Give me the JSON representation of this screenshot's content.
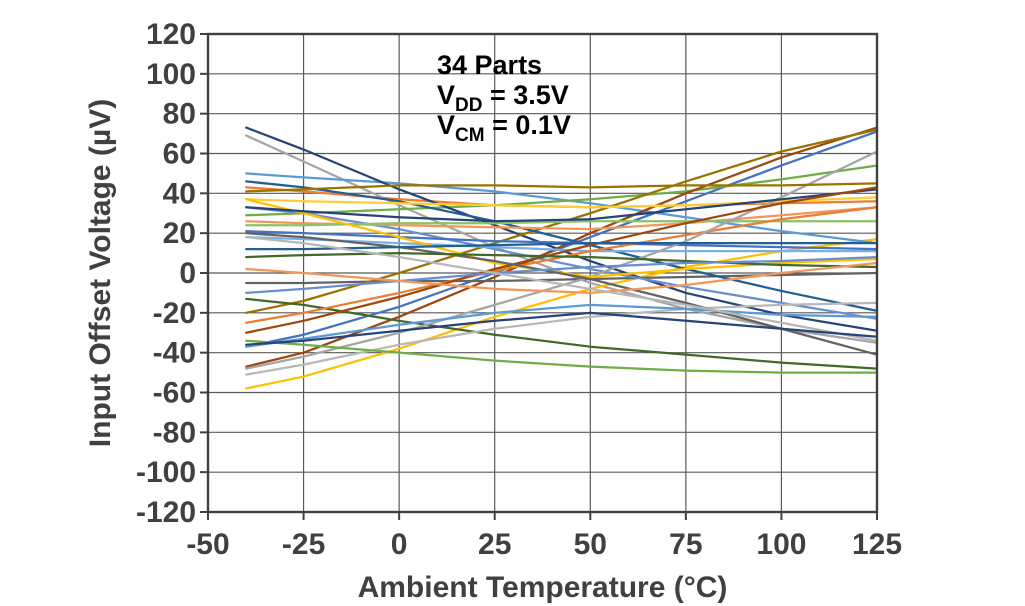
{
  "colors": {
    "background": "#ffffff",
    "grid": "#595959",
    "axis": "#404040",
    "tick_text": "#404040",
    "title_text": "#404040",
    "annotation_text": "#000000"
  },
  "chart_data": {
    "type": "line",
    "title": "",
    "xlabel": "Ambient Temperature (°C)",
    "ylabel": "Input Offset Voltage (µV)",
    "xlim": [
      -50,
      125
    ],
    "ylim": [
      -120,
      120
    ],
    "xticks": [
      -50,
      -25,
      0,
      25,
      50,
      75,
      100,
      125
    ],
    "yticks": [
      120,
      100,
      80,
      60,
      40,
      20,
      0,
      -20,
      -40,
      -60,
      -80,
      -100,
      -120
    ],
    "grid": "on",
    "legend": "none",
    "annotation": {
      "line1": "34 Parts",
      "line2": {
        "base": "V",
        "sub": "DD",
        "rest": " = 3.5V"
      },
      "line3": {
        "base": "V",
        "sub": "CM",
        "rest": " = 0.1V"
      }
    },
    "x": [
      -40,
      -25,
      0,
      25,
      50,
      75,
      100,
      125
    ],
    "series": [
      {
        "color": "#4472C4",
        "values": [
          -37,
          -31,
          -17,
          0,
          18,
          36,
          54,
          71
        ]
      },
      {
        "color": "#ED7D31",
        "values": [
          43,
          41,
          37,
          34,
          33,
          34,
          35,
          36
        ]
      },
      {
        "color": "#A5A5A5",
        "values": [
          69,
          56,
          34,
          13,
          -5,
          -18,
          -28,
          -35
        ]
      },
      {
        "color": "#FFC000",
        "values": [
          -58,
          -52,
          -38,
          -22,
          -8,
          3,
          11,
          17
        ]
      },
      {
        "color": "#5B9BD5",
        "values": [
          50,
          48,
          45,
          41,
          35,
          28,
          21,
          15
        ]
      },
      {
        "color": "#70AD47",
        "values": [
          29,
          30,
          32,
          34,
          37,
          41,
          47,
          54
        ]
      },
      {
        "color": "#264478",
        "values": [
          73,
          62,
          42,
          24,
          6,
          -10,
          -21,
          -29
        ]
      },
      {
        "color": "#9E480E",
        "values": [
          -47,
          -40,
          -22,
          -2,
          20,
          40,
          58,
          73
        ]
      },
      {
        "color": "#636363",
        "values": [
          -5,
          -5,
          -4,
          -4,
          -3,
          -2,
          -1,
          0
        ]
      },
      {
        "color": "#997300",
        "values": [
          -20,
          -14,
          0,
          15,
          30,
          46,
          61,
          72
        ]
      },
      {
        "color": "#255E91",
        "values": [
          46,
          43,
          36,
          26,
          14,
          2,
          -9,
          -19
        ]
      },
      {
        "color": "#43682B",
        "values": [
          -13,
          -16,
          -24,
          -31,
          -37,
          -41,
          -45,
          -48
        ]
      },
      {
        "color": "#698ED0",
        "values": [
          33,
          30,
          22,
          12,
          2,
          -7,
          -15,
          -23
        ]
      },
      {
        "color": "#F1975A",
        "values": [
          26,
          25,
          24,
          23,
          22,
          25,
          29,
          33
        ]
      },
      {
        "color": "#B7B7B7",
        "values": [
          -51,
          -46,
          -36,
          -28,
          -22,
          -18,
          -16,
          -15
        ]
      },
      {
        "color": "#FFCD33",
        "values": [
          37,
          36,
          35,
          34,
          33,
          34,
          36,
          38
        ]
      },
      {
        "color": "#7CAFDD",
        "values": [
          18,
          17,
          15,
          13,
          11,
          11,
          11,
          11
        ]
      },
      {
        "color": "#8CC168",
        "values": [
          24,
          24,
          25,
          25,
          26,
          26,
          26,
          26
        ]
      },
      {
        "color": "#4472C4",
        "values": [
          21,
          20,
          18,
          16,
          15,
          14,
          13,
          12
        ]
      },
      {
        "color": "#ED7D31",
        "values": [
          -25,
          -20,
          -10,
          1,
          11,
          19,
          27,
          33
        ]
      },
      {
        "color": "#A5A5A5",
        "values": [
          -48,
          -42,
          -30,
          -16,
          -2,
          16,
          38,
          61
        ]
      },
      {
        "color": "#FFC000",
        "values": [
          37,
          30,
          18,
          5,
          -2,
          2,
          5,
          7
        ]
      },
      {
        "color": "#5B9BD5",
        "values": [
          -37,
          -33,
          -26,
          -20,
          -16,
          -18,
          -21,
          -22
        ]
      },
      {
        "color": "#70AD47",
        "values": [
          -34,
          -36,
          -40,
          -44,
          -47,
          -49,
          -50,
          -50
        ]
      },
      {
        "color": "#264478",
        "values": [
          33,
          31,
          28,
          26,
          27,
          32,
          37,
          42
        ]
      },
      {
        "color": "#9E480E",
        "values": [
          -30,
          -24,
          -12,
          2,
          14,
          25,
          35,
          43
        ]
      },
      {
        "color": "#636363",
        "values": [
          20,
          18,
          13,
          6,
          -3,
          -15,
          -28,
          -41
        ]
      },
      {
        "color": "#997300",
        "values": [
          41,
          42,
          44,
          44,
          43,
          44,
          44,
          45
        ]
      },
      {
        "color": "#255E91",
        "values": [
          12,
          12,
          13,
          14,
          15,
          15,
          15,
          15
        ]
      },
      {
        "color": "#43682B",
        "values": [
          8,
          9,
          10,
          9,
          8,
          6,
          4,
          3
        ]
      },
      {
        "color": "#698ED0",
        "values": [
          -10,
          -8,
          -4,
          0,
          3,
          5,
          6,
          8
        ]
      },
      {
        "color": "#F1975A",
        "values": [
          2,
          0,
          -4,
          -8,
          -10,
          -6,
          0,
          5
        ]
      },
      {
        "color": "#B7B7B7",
        "values": [
          18,
          15,
          8,
          0,
          -8,
          -16,
          -25,
          -34
        ]
      },
      {
        "color": "#264478",
        "values": [
          -36,
          -34,
          -29,
          -24,
          -20,
          -24,
          -28,
          -32
        ]
      }
    ]
  }
}
